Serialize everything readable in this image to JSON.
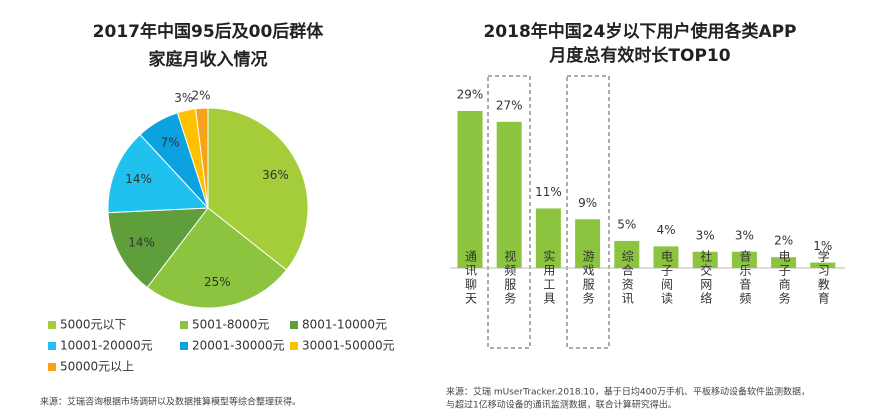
{
  "chart_data": [
    {
      "type": "pie",
      "title": [
        "2017年中国95后及00后群体",
        "家庭月收入情况"
      ],
      "categories": [
        "5000元以下",
        "5001-8000元",
        "8001-10000元",
        "10001-20000元",
        "20001-30000元",
        "30001-50000元",
        "50000元以上"
      ],
      "values": [
        36,
        25,
        14,
        14,
        7,
        3,
        2
      ],
      "value_labels": [
        "36%",
        "25%",
        "14%",
        "14%",
        "7%",
        "3%",
        "2%"
      ],
      "colors": [
        "#a5cd39",
        "#8cc43f",
        "#5f9f3b",
        "#1fc1ef",
        "#0ba2df",
        "#ffc000",
        "#f7a21b"
      ],
      "source": "来源：艾瑞咨询根据市场调研以及数据推算模型等综合整理获得。"
    },
    {
      "type": "bar",
      "title": [
        "2018年中国24岁以下用户使用各类APP",
        "月度总有效时长TOP10"
      ],
      "categories": [
        "通讯聊天",
        "视频服务",
        "实用工具",
        "游戏服务",
        "综合资讯",
        "电子阅读",
        "社交网络",
        "音乐音频",
        "电子商务",
        "学习教育"
      ],
      "values": [
        29,
        27,
        11,
        9,
        5,
        4,
        3,
        3,
        2,
        1
      ],
      "value_labels": [
        "29%",
        "27%",
        "11%",
        "9%",
        "5%",
        "4%",
        "3%",
        "3%",
        "2%",
        "1%"
      ],
      "color": "#8cc43f",
      "source": [
        "来源：艾瑞 mUserTracker.2018.10，基于日均400万手机、平板移动设备软件监测数据，",
        "与超过1亿移动设备的通讯监测数据，联合计算研究得出。"
      ]
    }
  ]
}
